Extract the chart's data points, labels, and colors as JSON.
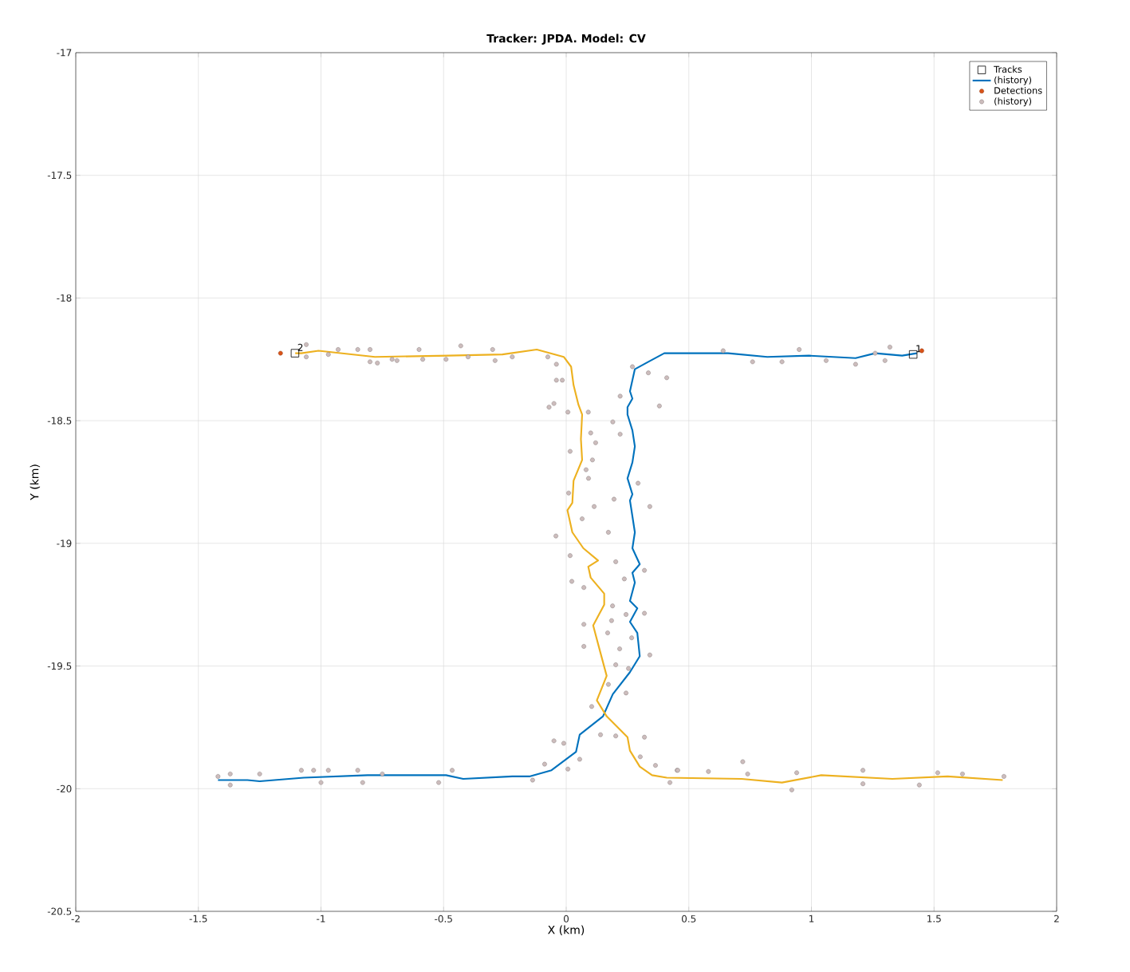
{
  "chart_data": {
    "type": "scatter",
    "title": "Tracker: JPDA. Model: CV",
    "xlabel": "X (km)",
    "ylabel": "Y (km)",
    "xlim": [
      -2,
      2
    ],
    "xticks": [
      -2,
      -1.5,
      -1,
      -0.5,
      0,
      0.5,
      1,
      1.5,
      2
    ],
    "ylim": [
      -20.5,
      -17
    ],
    "yticks": [
      -20.5,
      -20,
      -19.5,
      -19,
      -18.5,
      -18,
      -17.5,
      -17
    ],
    "grid": true,
    "legend": "top right",
    "series": [
      {
        "name": "Tracks",
        "marker": "square",
        "color": "#000000",
        "x": [
          1.415,
          -1.106
        ],
        "values": [
          -18.23,
          -18.225
        ]
      },
      {
        "name": "(history)",
        "type": "line",
        "marker": "none",
        "color": "#0072bd",
        "x": [
          -1.42,
          -1.3,
          -1.25,
          -1.07,
          -0.81,
          -0.6,
          -0.49,
          -0.42,
          -0.22,
          -0.15,
          -0.06,
          0.04,
          0.055,
          0.15,
          0.19,
          0.26,
          0.3,
          0.29,
          0.26,
          0.29,
          0.26,
          0.28,
          0.27,
          0.3,
          0.27,
          0.28,
          0.27,
          0.26,
          0.27,
          0.25,
          0.27,
          0.28,
          0.27,
          0.25,
          0.25,
          0.27,
          0.26,
          0.28,
          0.335,
          0.4,
          0.5,
          0.66,
          0.82,
          0.99,
          1.18,
          1.26,
          1.37,
          1.43
        ],
        "values": [
          -19.965,
          -19.965,
          -19.97,
          -19.955,
          -19.945,
          -19.945,
          -19.945,
          -19.96,
          -19.95,
          -19.95,
          -19.925,
          -19.85,
          -19.78,
          -19.705,
          -19.615,
          -19.525,
          -19.46,
          -19.365,
          -19.32,
          -19.265,
          -19.235,
          -19.16,
          -19.12,
          -19.085,
          -19.02,
          -18.955,
          -18.89,
          -18.825,
          -18.8,
          -18.735,
          -18.67,
          -18.605,
          -18.54,
          -18.475,
          -18.445,
          -18.41,
          -18.38,
          -18.29,
          -18.26,
          -18.225,
          -18.225,
          -18.225,
          -18.24,
          -18.235,
          -18.245,
          -18.225,
          -18.235,
          -18.225
        ]
      },
      {
        "type": "line",
        "marker": "none",
        "color": "#edb120",
        "x": [
          -1.105,
          -1.08,
          -1.01,
          -0.78,
          -0.48,
          -0.26,
          -0.12,
          -0.01,
          0.02,
          0.03,
          0.05,
          0.065,
          0.06,
          0.065,
          0.03,
          0.025,
          0.005,
          0.025,
          0.07,
          0.13,
          0.09,
          0.1,
          0.155,
          0.155,
          0.11,
          0.13,
          0.165,
          0.125,
          0.165,
          0.25,
          0.26,
          0.3,
          0.35,
          0.41,
          0.715,
          0.88,
          1.04,
          1.33,
          1.555,
          1.78
        ],
        "values": [
          -18.225,
          -18.225,
          -18.215,
          -18.24,
          -18.235,
          -18.23,
          -18.21,
          -18.24,
          -18.28,
          -18.355,
          -18.435,
          -18.475,
          -18.575,
          -18.66,
          -18.745,
          -18.835,
          -18.865,
          -18.955,
          -19.02,
          -19.07,
          -19.095,
          -19.14,
          -19.205,
          -19.25,
          -19.335,
          -19.41,
          -19.54,
          -19.64,
          -19.705,
          -19.79,
          -19.845,
          -19.91,
          -19.945,
          -19.955,
          -19.96,
          -19.975,
          -19.945,
          -19.96,
          -19.95,
          -19.965
        ]
      },
      {
        "name": "Detections",
        "marker": "circle",
        "color": "#d95319",
        "x": [
          1.45,
          -1.165
        ],
        "values": [
          -18.215,
          -18.225
        ]
      },
      {
        "name": "(history)",
        "marker": "circle",
        "color": "#ccbcbc",
        "x": [
          -1.06,
          -1.06,
          -0.97,
          -0.93,
          -0.85,
          -0.8,
          -0.8,
          -0.77,
          -0.71,
          -0.69,
          -0.6,
          -0.585,
          -0.43,
          -0.49,
          -0.4,
          -0.3,
          -0.29,
          -0.22,
          -0.075,
          -0.04,
          -0.04,
          -0.016,
          -0.07,
          -0.05,
          0.007,
          0.41,
          0.38,
          0.19,
          0.22,
          0.335,
          0.27,
          0.64,
          0.76,
          0.88,
          0.95,
          1.06,
          1.18,
          1.32,
          1.3,
          1.26,
          0.09,
          0.22,
          0.1,
          0.12,
          0.016,
          0.107,
          0.081,
          0.091,
          0.293,
          0.01,
          0.195,
          0.341,
          0.114,
          0.065,
          -0.042,
          0.172,
          0.016,
          0.202,
          0.319,
          0.023,
          0.072,
          0.237,
          0.189,
          0.319,
          0.244,
          0.072,
          0.185,
          0.169,
          0.267,
          0.072,
          0.218,
          0.341,
          0.202,
          0.254,
          0.172,
          0.244,
          0.104,
          0.202,
          0.14,
          -0.05,
          -0.01,
          0.055,
          0.007,
          0.364,
          0.302,
          0.319,
          0.423,
          0.452,
          -1.42,
          -1.37,
          -1.37,
          -1.25,
          -1.08,
          -1.03,
          -0.97,
          -1.0,
          -0.83,
          -0.85,
          -0.75,
          -0.52,
          -0.465,
          -0.137,
          -0.088,
          0.72,
          0.92,
          0.74,
          0.94,
          1.21,
          1.21,
          1.44,
          1.515,
          1.616,
          1.785,
          0.58,
          0.455
        ],
        "values": [
          -18.19,
          -18.24,
          -18.23,
          -18.21,
          -18.21,
          -18.21,
          -18.26,
          -18.265,
          -18.25,
          -18.255,
          -18.21,
          -18.25,
          -18.195,
          -18.25,
          -18.24,
          -18.21,
          -18.255,
          -18.24,
          -18.24,
          -18.27,
          -18.335,
          -18.335,
          -18.445,
          -18.43,
          -18.465,
          -18.325,
          -18.44,
          -18.505,
          -18.4,
          -18.305,
          -18.28,
          -18.215,
          -18.26,
          -18.26,
          -18.21,
          -18.255,
          -18.27,
          -18.2,
          -18.255,
          -18.225,
          -18.465,
          -18.555,
          -18.55,
          -18.59,
          -18.625,
          -18.66,
          -18.7,
          -18.735,
          -18.755,
          -18.795,
          -18.82,
          -18.85,
          -18.85,
          -18.9,
          -18.97,
          -18.955,
          -19.05,
          -19.075,
          -19.11,
          -19.155,
          -19.18,
          -19.145,
          -19.255,
          -19.285,
          -19.29,
          -19.33,
          -19.315,
          -19.365,
          -19.385,
          -19.42,
          -19.43,
          -19.455,
          -19.495,
          -19.51,
          -19.575,
          -19.61,
          -19.665,
          -19.785,
          -19.78,
          -19.805,
          -19.815,
          -19.88,
          -19.92,
          -19.905,
          -19.87,
          -19.79,
          -19.975,
          -19.925,
          -19.95,
          -19.94,
          -19.985,
          -19.94,
          -19.925,
          -19.925,
          -19.925,
          -19.975,
          -19.975,
          -19.925,
          -19.94,
          -19.975,
          -19.925,
          -19.965,
          -19.9,
          -19.89,
          -20.005,
          -19.94,
          -19.935,
          -19.925,
          -19.98,
          -19.985,
          -19.935,
          -19.94,
          -19.95,
          -19.93,
          -19.925
        ]
      }
    ],
    "annotations": [
      {
        "text": "1",
        "x": 1.415,
        "y": -18.23
      },
      {
        "text": "2",
        "x": -1.106,
        "y": -18.225
      }
    ]
  }
}
